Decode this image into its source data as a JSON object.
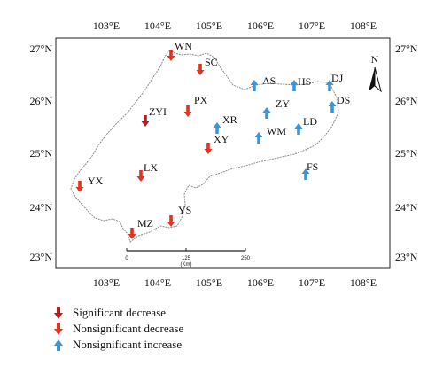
{
  "map": {
    "lon_labels": [
      "103°E",
      "104°E",
      "105°E",
      "106°E",
      "107°E",
      "108°E"
    ],
    "lat_labels": [
      "27°N",
      "26°N",
      "25°N",
      "24°N",
      "23°N"
    ],
    "north_label": "N",
    "scale_bar": {
      "ticks": [
        "0",
        "125",
        "250"
      ],
      "unit": "(Km)"
    },
    "colors": {
      "significant_decrease": "#b22222",
      "nonsignificant_decrease": "#e4321c",
      "nonsignificant_increase": "#3d95d6",
      "boundary": "#8a8a8a"
    },
    "stations": [
      {
        "name": "WN",
        "trend": "nonsignificant_decrease",
        "direction": "down"
      },
      {
        "name": "SC",
        "trend": "nonsignificant_decrease",
        "direction": "down"
      },
      {
        "name": "AS",
        "trend": "nonsignificant_increase",
        "direction": "up"
      },
      {
        "name": "HS",
        "trend": "nonsignificant_increase",
        "direction": "up"
      },
      {
        "name": "DJ",
        "trend": "nonsignificant_increase",
        "direction": "up"
      },
      {
        "name": "DS",
        "trend": "nonsignificant_increase",
        "direction": "up"
      },
      {
        "name": "ZY",
        "trend": "nonsignificant_increase",
        "direction": "up"
      },
      {
        "name": "PX",
        "trend": "nonsignificant_decrease",
        "direction": "down"
      },
      {
        "name": "ZYI",
        "trend": "significant_decrease",
        "direction": "down"
      },
      {
        "name": "XR",
        "trend": "nonsignificant_increase",
        "direction": "up"
      },
      {
        "name": "XY",
        "trend": "nonsignificant_decrease",
        "direction": "down"
      },
      {
        "name": "WM",
        "trend": "nonsignificant_increase",
        "direction": "up"
      },
      {
        "name": "LD",
        "trend": "nonsignificant_increase",
        "direction": "up"
      },
      {
        "name": "LX",
        "trend": "nonsignificant_decrease",
        "direction": "down"
      },
      {
        "name": "FS",
        "trend": "nonsignificant_increase",
        "direction": "up"
      },
      {
        "name": "YX",
        "trend": "nonsignificant_decrease",
        "direction": "down"
      },
      {
        "name": "YS",
        "trend": "nonsignificant_decrease",
        "direction": "down"
      },
      {
        "name": "MZ",
        "trend": "nonsignificant_decrease",
        "direction": "down"
      }
    ]
  },
  "legend": {
    "significant_decrease": "Significant decrease",
    "nonsignificant_decrease": "Nonsignificant decrease",
    "nonsignificant_increase": "Nonsignificant increase"
  }
}
